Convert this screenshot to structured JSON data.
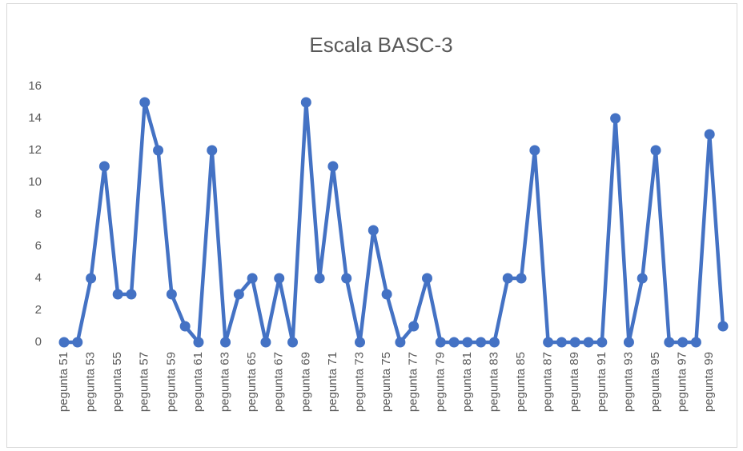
{
  "chart_data": {
    "type": "line",
    "title": "Escala BASC-3",
    "categories": [
      "pegunta 51",
      null,
      "pegunta 53",
      null,
      "pegunta 55",
      null,
      "pegunta 57",
      null,
      "pegunta 59",
      null,
      "pegunta 61",
      null,
      "pegunta 63",
      null,
      "pegunta 65",
      null,
      "pegunta 67",
      null,
      "pegunta 69",
      null,
      "pegunta 71",
      null,
      "pegunta 73",
      null,
      "pegunta 75",
      null,
      "pegunta 77",
      null,
      "pegunta 79",
      null,
      "pegunta 81",
      null,
      "pegunta 83",
      null,
      "pegunta 85",
      null,
      "pegunta 87",
      null,
      "pegunta 89",
      null,
      "pegunta 91",
      null,
      "pegunta 93",
      null,
      "pegunta 95",
      null,
      "pegunta 97",
      null,
      "pegunta 99",
      null
    ],
    "values": [
      0,
      0,
      4,
      11,
      3,
      3,
      15,
      12,
      3,
      1,
      0,
      12,
      0,
      3,
      4,
      0,
      4,
      0,
      15,
      4,
      11,
      4,
      0,
      7,
      3,
      0,
      1,
      4,
      0,
      0,
      0,
      0,
      0,
      4,
      4,
      12,
      0,
      0,
      0,
      0,
      0,
      14,
      0,
      4,
      12,
      0,
      0,
      0,
      13,
      1
    ],
    "color": "#4472c4",
    "ylim": [
      0,
      16
    ],
    "yticks": [
      0,
      2,
      4,
      6,
      8,
      10,
      12,
      14,
      16
    ],
    "grid": false
  }
}
